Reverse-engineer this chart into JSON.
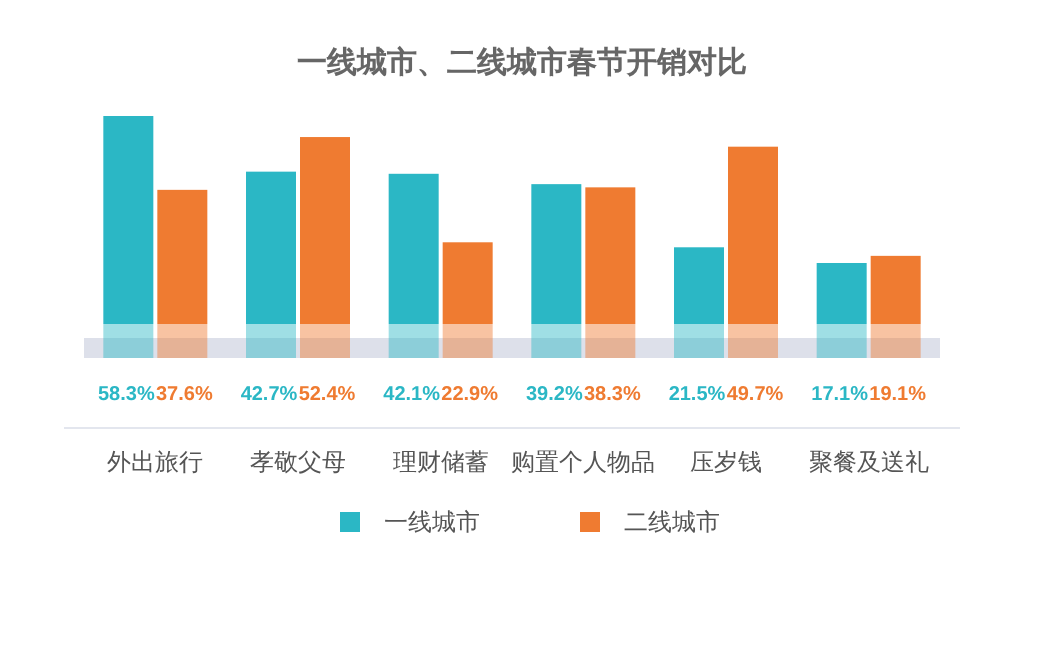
{
  "chart_data": {
    "type": "bar",
    "title": "一线城市、二线城市春节开销对比",
    "categories": [
      "外出旅行",
      "孝敬父母",
      "理财储蓄",
      "购置个人物品",
      "压岁钱",
      "聚餐及送礼"
    ],
    "series": [
      {
        "name": "一线城市",
        "color": "#2bb7c5",
        "values": [
          58.3,
          42.7,
          42.1,
          39.2,
          21.5,
          17.1
        ],
        "value_labels": [
          "58.3%",
          "42.7%",
          "42.1%",
          "39.2%",
          "21.5%",
          "17.1%"
        ]
      },
      {
        "name": "二线城市",
        "color": "#ef7b31",
        "values": [
          37.6,
          52.4,
          22.9,
          38.3,
          49.7,
          19.1
        ],
        "value_labels": [
          "37.6%",
          "52.4%",
          "22.9%",
          "38.3%",
          "49.7%",
          "19.1%"
        ]
      }
    ],
    "legend": "bottom"
  }
}
